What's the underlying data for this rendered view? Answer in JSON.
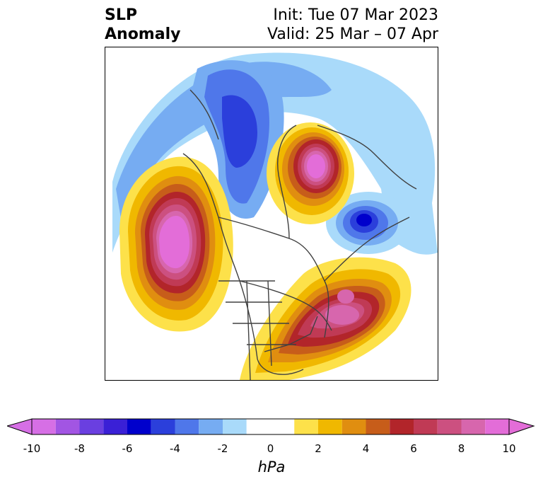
{
  "title": {
    "variable_line1": "SLP",
    "variable_line2": "Anomaly",
    "init": "Init: Tue 07 Mar 2023",
    "valid": "Valid: 25 Mar – 07 Apr"
  },
  "colorbar": {
    "units": "hPa",
    "tick_labels": [
      "-10",
      "-8",
      "-6",
      "-4",
      "-2",
      "0",
      "2",
      "4",
      "6",
      "8",
      "10"
    ],
    "bins": [
      {
        "range": [
          -10,
          -9
        ],
        "color": "#d66fe5"
      },
      {
        "range": [
          -9,
          -8
        ],
        "color": "#a255e3"
      },
      {
        "range": [
          -8,
          -7
        ],
        "color": "#6a3fe0"
      },
      {
        "range": [
          -7,
          -6
        ],
        "color": "#3a20d6"
      },
      {
        "range": [
          -6,
          -5
        ],
        "color": "#0000cc"
      },
      {
        "range": [
          -5,
          -4
        ],
        "color": "#2b3fdb"
      },
      {
        "range": [
          -4,
          -3
        ],
        "color": "#4f77ea"
      },
      {
        "range": [
          -3,
          -2
        ],
        "color": "#76acf2"
      },
      {
        "range": [
          -2,
          -1
        ],
        "color": "#a9dafa"
      },
      {
        "range": [
          -1,
          1
        ],
        "color": "#ffffff"
      },
      {
        "range": [
          1,
          2
        ],
        "color": "#fde14a"
      },
      {
        "range": [
          2,
          3
        ],
        "color": "#f0b800"
      },
      {
        "range": [
          3,
          4
        ],
        "color": "#e08e10"
      },
      {
        "range": [
          4,
          5
        ],
        "color": "#c75d1a"
      },
      {
        "range": [
          5,
          6
        ],
        "color": "#b2252a"
      },
      {
        "range": [
          6,
          7
        ],
        "color": "#c03a55"
      },
      {
        "range": [
          7,
          8
        ],
        "color": "#cc5080"
      },
      {
        "range": [
          8,
          9
        ],
        "color": "#d766ad"
      },
      {
        "range": [
          9,
          10
        ],
        "color": "#e36dd8"
      }
    ],
    "extend": "both"
  },
  "map": {
    "projection": "north-polar-stereographic",
    "anomalies": [
      {
        "name": "north-pacific-high",
        "peak_hpa": 10,
        "sign": "positive"
      },
      {
        "name": "arctic-high",
        "peak_hpa": 10,
        "sign": "positive"
      },
      {
        "name": "north-atlantic-high",
        "peak_hpa": 9,
        "sign": "positive"
      },
      {
        "name": "canadian-low",
        "peak_hpa": -6,
        "sign": "negative"
      },
      {
        "name": "european-low",
        "peak_hpa": -7,
        "sign": "negative"
      }
    ]
  }
}
